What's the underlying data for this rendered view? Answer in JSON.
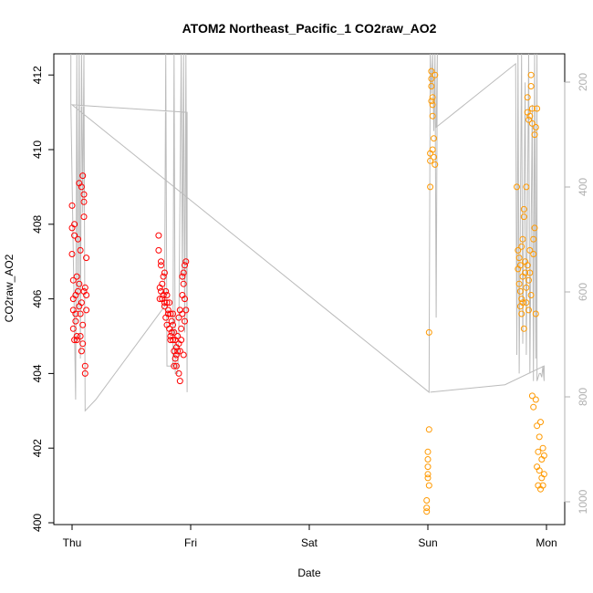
{
  "chart_data": {
    "type": "scatter",
    "title": "ATOM2 Northeast_Pacific_1 CO2raw_AO2",
    "xlabel": "Date",
    "ylabel": "CO2raw_AO2",
    "x_ticks": [
      "Thu",
      "Fri",
      "Sat",
      "Sun",
      "Mon"
    ],
    "xlim": [
      -0.2,
      4.15
    ],
    "y_ticks": [
      400,
      402,
      404,
      406,
      408,
      410,
      412
    ],
    "ylim": [
      400,
      412.5
    ],
    "right_axis_ticks": [
      200,
      400,
      600,
      800,
      1000
    ],
    "right_axis_lim": [
      118,
      1031
    ],
    "grid": false,
    "legend": "none",
    "colors": {
      "segment_a": "#ff0000",
      "segment_b": "#ff9900",
      "trace": "#bbbbbb",
      "right_axis": "#b0b0b0"
    },
    "series": [
      {
        "color": "#ff0000",
        "points": [
          [
            0.0,
            408.5
          ],
          [
            0.0,
            407.9
          ],
          [
            0.0,
            407.2
          ],
          [
            0.01,
            406.5
          ],
          [
            0.01,
            406.0
          ],
          [
            0.01,
            405.7
          ],
          [
            0.01,
            405.2
          ],
          [
            0.02,
            404.9
          ],
          [
            0.02,
            407.7
          ],
          [
            0.02,
            408.0
          ],
          [
            0.03,
            406.1
          ],
          [
            0.03,
            405.6
          ],
          [
            0.04,
            406.6
          ],
          [
            0.04,
            405.0
          ],
          [
            0.04,
            404.9
          ],
          [
            0.05,
            406.2
          ],
          [
            0.05,
            407.6
          ],
          [
            0.06,
            409.1
          ],
          [
            0.06,
            405.8
          ],
          [
            0.07,
            405.6
          ],
          [
            0.07,
            405.0
          ],
          [
            0.08,
            404.6
          ],
          [
            0.08,
            409.0
          ],
          [
            0.09,
            405.3
          ],
          [
            0.09,
            409.3
          ],
          [
            0.1,
            408.6
          ],
          [
            0.1,
            408.8
          ],
          [
            0.11,
            404.2
          ],
          [
            0.11,
            404.0
          ],
          [
            0.11,
            406.3
          ],
          [
            0.12,
            406.1
          ],
          [
            0.12,
            405.7
          ],
          [
            0.12,
            407.1
          ],
          [
            0.08,
            405.9
          ],
          [
            0.09,
            404.8
          ],
          [
            0.1,
            408.2
          ],
          [
            0.03,
            405.4
          ],
          [
            0.06,
            406.4
          ],
          [
            0.07,
            407.3
          ],
          [
            0.1,
            406.2
          ],
          [
            0.73,
            407.7
          ],
          [
            0.73,
            407.3
          ],
          [
            0.74,
            406.3
          ],
          [
            0.74,
            406.0
          ],
          [
            0.75,
            406.9
          ],
          [
            0.75,
            406.2
          ],
          [
            0.76,
            406.4
          ],
          [
            0.76,
            406.0
          ],
          [
            0.77,
            406.6
          ],
          [
            0.77,
            406.1
          ],
          [
            0.78,
            405.9
          ],
          [
            0.78,
            405.8
          ],
          [
            0.79,
            406.2
          ],
          [
            0.79,
            405.5
          ],
          [
            0.8,
            405.9
          ],
          [
            0.8,
            405.3
          ],
          [
            0.81,
            405.7
          ],
          [
            0.81,
            405.6
          ],
          [
            0.82,
            405.9
          ],
          [
            0.82,
            405.2
          ],
          [
            0.83,
            405.6
          ],
          [
            0.83,
            405.0
          ],
          [
            0.84,
            405.4
          ],
          [
            0.84,
            405.1
          ],
          [
            0.85,
            405.3
          ],
          [
            0.85,
            404.9
          ],
          [
            0.86,
            405.1
          ],
          [
            0.86,
            404.6
          ],
          [
            0.87,
            404.9
          ],
          [
            0.87,
            404.4
          ],
          [
            0.88,
            404.7
          ],
          [
            0.88,
            404.5
          ],
          [
            0.89,
            405.0
          ],
          [
            0.89,
            404.6
          ],
          [
            0.9,
            404.8
          ],
          [
            0.9,
            404.0
          ],
          [
            0.91,
            403.8
          ],
          [
            0.91,
            404.6
          ],
          [
            0.92,
            405.2
          ],
          [
            0.92,
            404.9
          ],
          [
            0.93,
            405.6
          ],
          [
            0.93,
            406.1
          ],
          [
            0.94,
            406.7
          ],
          [
            0.94,
            406.4
          ],
          [
            0.95,
            406.9
          ],
          [
            0.95,
            406.0
          ],
          [
            0.96,
            407.0
          ],
          [
            0.96,
            405.7
          ],
          [
            0.75,
            407.0
          ],
          [
            0.78,
            406.7
          ],
          [
            0.83,
            404.9
          ],
          [
            0.86,
            404.2
          ],
          [
            0.9,
            405.5
          ],
          [
            0.93,
            406.6
          ],
          [
            0.95,
            405.4
          ],
          [
            0.8,
            406.1
          ],
          [
            0.85,
            405.6
          ],
          [
            0.88,
            404.2
          ],
          [
            0.91,
            405.7
          ],
          [
            0.94,
            404.5
          ]
        ]
      },
      {
        "color": "#ff9900",
        "points": [
          [
            2.99,
            400.3
          ],
          [
            2.99,
            400.4
          ],
          [
            2.99,
            400.6
          ],
          [
            3.0,
            401.3
          ],
          [
            3.0,
            401.5
          ],
          [
            3.0,
            401.7
          ],
          [
            3.0,
            401.9
          ],
          [
            3.01,
            401.0
          ],
          [
            3.01,
            402.5
          ],
          [
            3.01,
            405.1
          ],
          [
            3.02,
            409.0
          ],
          [
            3.02,
            409.7
          ],
          [
            3.03,
            412.1
          ],
          [
            3.03,
            411.9
          ],
          [
            3.03,
            411.7
          ],
          [
            3.04,
            411.2
          ],
          [
            3.04,
            410.9
          ],
          [
            3.04,
            410.0
          ],
          [
            3.05,
            409.8
          ],
          [
            3.05,
            410.3
          ],
          [
            3.06,
            409.6
          ],
          [
            3.06,
            412.0
          ],
          [
            3.04,
            411.4
          ],
          [
            3.02,
            409.9
          ],
          [
            3.03,
            411.3
          ],
          [
            3.0,
            401.2
          ],
          [
            3.75,
            409.0
          ],
          [
            3.76,
            407.3
          ],
          [
            3.76,
            406.8
          ],
          [
            3.77,
            407.1
          ],
          [
            3.77,
            406.4
          ],
          [
            3.78,
            405.8
          ],
          [
            3.78,
            406.9
          ],
          [
            3.79,
            407.4
          ],
          [
            3.79,
            406.0
          ],
          [
            3.8,
            405.9
          ],
          [
            3.8,
            407.6
          ],
          [
            3.81,
            408.4
          ],
          [
            3.81,
            408.2
          ],
          [
            3.82,
            406.7
          ],
          [
            3.82,
            407.0
          ],
          [
            3.83,
            406.3
          ],
          [
            3.83,
            409.0
          ],
          [
            3.84,
            411.4
          ],
          [
            3.84,
            411.0
          ],
          [
            3.85,
            410.8
          ],
          [
            3.85,
            406.5
          ],
          [
            3.86,
            406.7
          ],
          [
            3.86,
            407.3
          ],
          [
            3.87,
            412.0
          ],
          [
            3.87,
            411.7
          ],
          [
            3.88,
            411.1
          ],
          [
            3.88,
            410.7
          ],
          [
            3.89,
            407.2
          ],
          [
            3.89,
            407.6
          ],
          [
            3.9,
            410.4
          ],
          [
            3.9,
            407.9
          ],
          [
            3.91,
            405.6
          ],
          [
            3.91,
            403.3
          ],
          [
            3.92,
            402.6
          ],
          [
            3.92,
            401.5
          ],
          [
            3.93,
            401.0
          ],
          [
            3.93,
            401.9
          ],
          [
            3.94,
            402.3
          ],
          [
            3.94,
            401.4
          ],
          [
            3.95,
            400.9
          ],
          [
            3.95,
            402.7
          ],
          [
            3.96,
            401.7
          ],
          [
            3.96,
            401.2
          ],
          [
            3.97,
            402.0
          ],
          [
            3.97,
            401.0
          ],
          [
            3.98,
            401.3
          ],
          [
            3.98,
            401.8
          ],
          [
            3.88,
            403.4
          ],
          [
            3.89,
            403.1
          ],
          [
            3.86,
            410.9
          ],
          [
            3.92,
            411.1
          ],
          [
            3.91,
            410.6
          ],
          [
            3.87,
            406.1
          ],
          [
            3.83,
            405.9
          ],
          [
            3.79,
            405.6
          ],
          [
            3.81,
            405.2
          ],
          [
            3.85,
            405.7
          ],
          [
            3.84,
            406.9
          ],
          [
            3.8,
            406.6
          ],
          [
            3.78,
            406.2
          ]
        ]
      }
    ],
    "trace": [
      [
        -0.01,
        413
      ],
      [
        -0.01,
        411.2
      ],
      [
        0.03,
        403.3
      ],
      [
        0.04,
        413
      ],
      [
        0.05,
        405.6
      ],
      [
        0.06,
        413
      ],
      [
        0.07,
        404.4
      ],
      [
        0.08,
        413
      ],
      [
        0.09,
        408.3
      ],
      [
        0.1,
        413
      ],
      [
        0.11,
        403.0
      ],
      [
        0.2,
        403.3
      ],
      [
        0.78,
        405.8
      ],
      [
        0.79,
        413
      ],
      [
        0.8,
        404.2
      ],
      [
        0.85,
        404.2
      ],
      [
        0.86,
        413
      ],
      [
        0.87,
        404.0
      ],
      [
        0.89,
        404.0
      ],
      [
        0.9,
        405.0
      ],
      [
        0.92,
        413
      ],
      [
        0.93,
        406.5
      ],
      [
        0.94,
        413
      ],
      [
        0.95,
        405.1
      ],
      [
        0.96,
        413
      ],
      [
        0.97,
        403.5
      ],
      [
        0.97,
        411.0
      ],
      [
        0.0,
        411.2
      ],
      [
        3.01,
        403.5
      ],
      [
        3.02,
        413
      ],
      [
        3.03,
        411.5
      ],
      [
        3.04,
        413
      ],
      [
        3.05,
        410.5
      ],
      [
        3.06,
        413
      ],
      [
        3.07,
        405.5
      ],
      [
        3.08,
        413
      ],
      [
        3.07,
        410.6
      ],
      [
        3.74,
        412.3
      ],
      [
        3.75,
        404.5
      ],
      [
        3.76,
        413
      ],
      [
        3.77,
        404.0
      ],
      [
        3.79,
        413
      ],
      [
        3.8,
        404.8
      ],
      [
        3.82,
        411.8
      ],
      [
        3.83,
        404.5
      ],
      [
        3.85,
        413
      ],
      [
        3.86,
        404.0
      ],
      [
        3.88,
        411.2
      ],
      [
        3.89,
        403.8
      ],
      [
        3.9,
        413
      ],
      [
        3.91,
        404.4
      ],
      [
        3.92,
        413
      ],
      [
        3.92,
        403.8
      ],
      [
        3.93,
        403.9
      ],
      [
        3.94,
        404.0
      ],
      [
        3.95,
        404.0
      ],
      [
        3.96,
        403.9
      ],
      [
        3.97,
        404.2
      ],
      [
        3.98,
        403.8
      ],
      [
        3.98,
        404.2
      ],
      [
        3.65,
        403.7
      ],
      [
        3.02,
        403.5
      ]
    ]
  }
}
